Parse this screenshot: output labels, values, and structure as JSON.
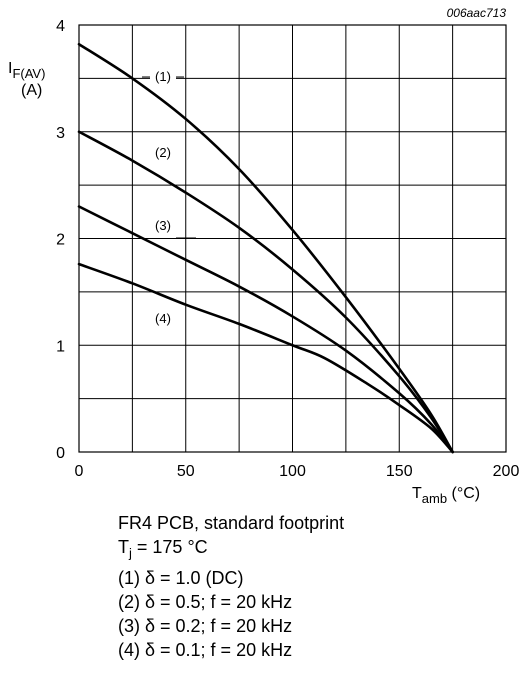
{
  "reference_code": "006aac713",
  "chart_data": {
    "type": "line",
    "ylabel": {
      "main": "I",
      "sub": "F(AV)",
      "unit": "(A)"
    },
    "xlabel": {
      "main": "T",
      "sub": "amb",
      "unit": " (°C)"
    },
    "xlim": [
      0,
      200
    ],
    "ylim": [
      0,
      4
    ],
    "x_ticks": [
      0,
      50,
      100,
      150,
      200
    ],
    "x_tick_labels": [
      "0",
      "50",
      "100",
      "150",
      "200"
    ],
    "y_ticks": [
      0,
      1,
      2,
      3,
      4
    ],
    "y_tick_labels": [
      "0",
      "1",
      "2",
      "3",
      "4"
    ],
    "x_grid_step": 25,
    "y_grid_step": 0.5,
    "grid": true,
    "series": [
      {
        "name": "(1)",
        "x": [
          0,
          25,
          50,
          75,
          100,
          125,
          150,
          165,
          175
        ],
        "y": [
          3.82,
          3.5,
          3.12,
          2.65,
          2.08,
          1.45,
          0.78,
          0.35,
          0.0
        ]
      },
      {
        "name": "(2)",
        "x": [
          0,
          25,
          50,
          75,
          100,
          125,
          150,
          165,
          175
        ],
        "y": [
          3.0,
          2.73,
          2.43,
          2.1,
          1.71,
          1.26,
          0.71,
          0.32,
          0.0
        ]
      },
      {
        "name": "(3)",
        "x": [
          0,
          25,
          50,
          75,
          100,
          125,
          150,
          165,
          175
        ],
        "y": [
          2.3,
          2.05,
          1.8,
          1.55,
          1.27,
          0.95,
          0.55,
          0.26,
          0.0
        ]
      },
      {
        "name": "(4)",
        "x": [
          0,
          25,
          50,
          75,
          100,
          115,
          135,
          150,
          165,
          175
        ],
        "y": [
          1.76,
          1.58,
          1.38,
          1.2,
          1.0,
          0.88,
          0.64,
          0.44,
          0.22,
          0.0
        ]
      }
    ]
  },
  "conditions": [
    {
      "text": "FR4 PCB, standard footprint"
    },
    {
      "main": "T",
      "sub": "j",
      "rest": " = 175 °C"
    },
    {
      "text": "(1) δ = 1.0 (DC)"
    },
    {
      "text": "(2) δ = 0.5; f = 20 kHz"
    },
    {
      "text": "(3) δ = 0.2; f = 20 kHz"
    },
    {
      "text": "(4) δ = 0.1; f = 20 kHz"
    }
  ]
}
